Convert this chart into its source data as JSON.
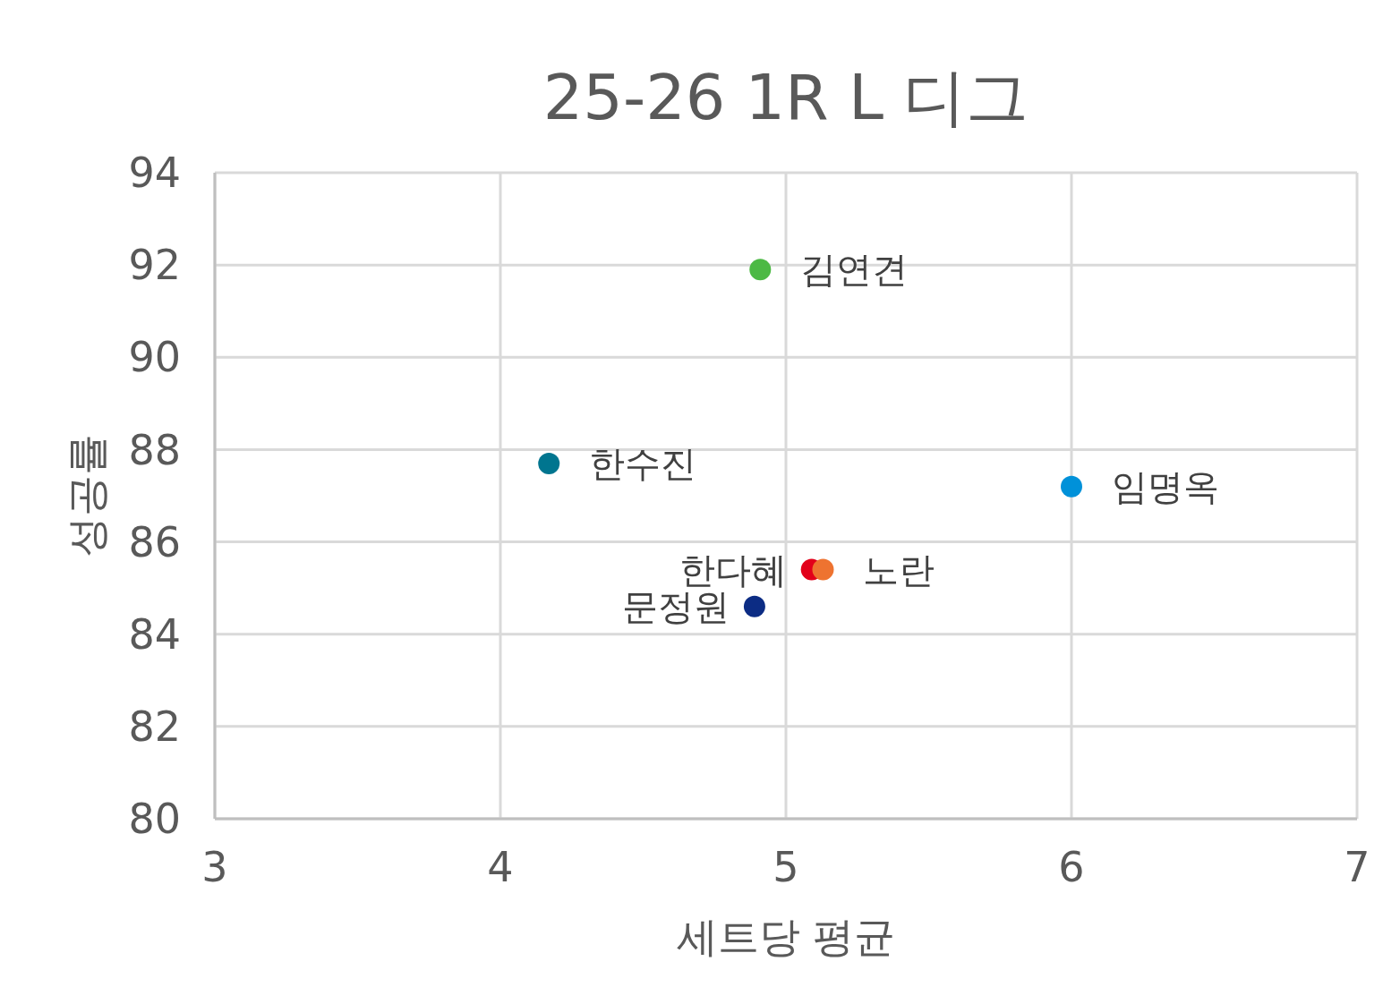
{
  "chart_data": {
    "type": "scatter",
    "title": "25-26  1R L 디그",
    "xlabel": "세트당 평균",
    "ylabel": "성공률",
    "xlim": [
      3,
      7
    ],
    "xticks": [
      3,
      4,
      5,
      6,
      7
    ],
    "ylim": [
      80,
      94
    ],
    "yticks": [
      80,
      82,
      84,
      86,
      88,
      90,
      92,
      94
    ],
    "grid": true,
    "marker": "circle",
    "series": [
      {
        "name": "김연견",
        "color": "#4cb944",
        "x": [
          4.91
        ],
        "values": [
          91.9
        ]
      },
      {
        "name": "한수진",
        "color": "#00758f",
        "x": [
          4.17
        ],
        "values": [
          87.7
        ]
      },
      {
        "name": "임명옥",
        "color": "#0091d9",
        "x": [
          6.0
        ],
        "values": [
          87.2
        ]
      },
      {
        "name": "한다혜",
        "color": "#e2001a",
        "x": [
          5.09
        ],
        "values": [
          85.4
        ]
      },
      {
        "name": "노란",
        "color": "#ee7330",
        "x": [
          5.13
        ],
        "values": [
          85.4
        ]
      },
      {
        "name": "문정원",
        "color": "#0c2c84",
        "x": [
          4.89
        ],
        "values": [
          84.6
        ]
      }
    ]
  }
}
